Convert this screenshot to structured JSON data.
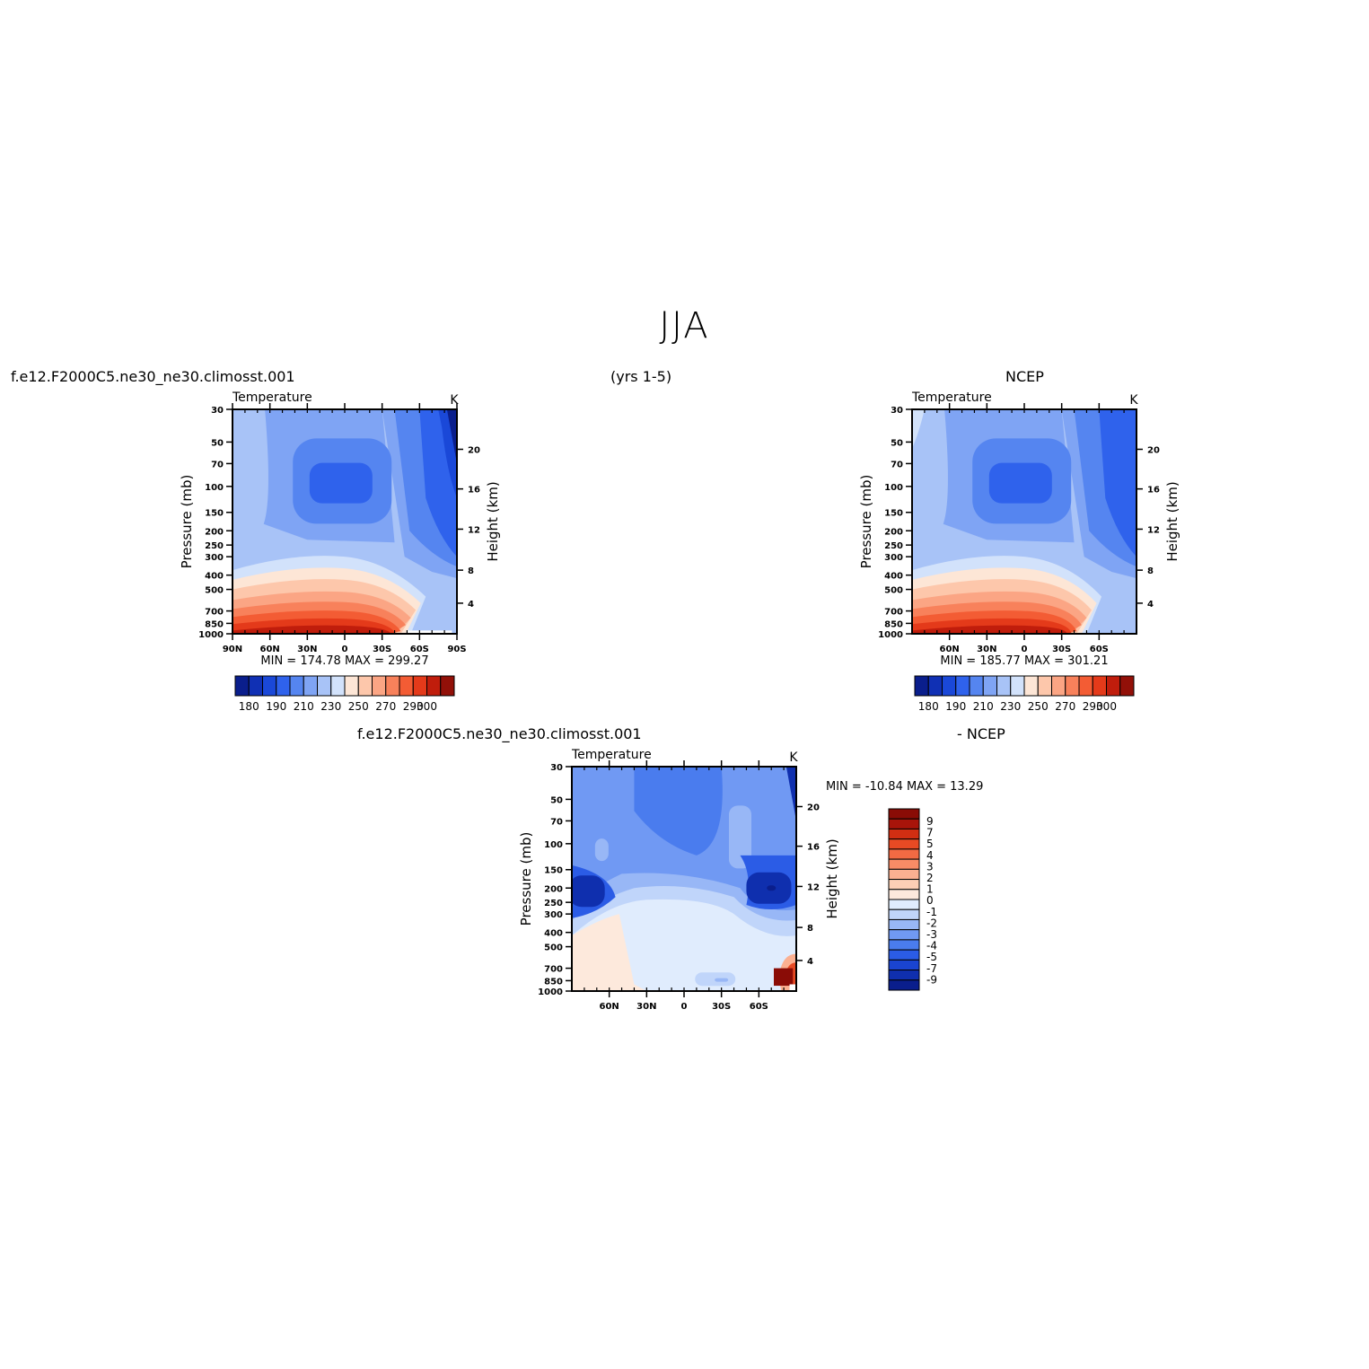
{
  "page": {
    "title": "JJA",
    "top_left_label": "f.e12.F2000C5.ne30_ne30.climosst.001",
    "top_center_label": "(yrs 1-5)",
    "top_right_label": "NCEP",
    "diff_left_label": "f.e12.F2000C5.ne30_ne30.climosst.001",
    "diff_right_label": "- NCEP"
  },
  "colors": {
    "temperature_scale": [
      "#0a1e8c",
      "#1030b4",
      "#1a48d8",
      "#2f62ec",
      "#5585f0",
      "#7fa4f4",
      "#a8c3f7",
      "#d2e2fb",
      "#fde6d6",
      "#fdc7ab",
      "#fba584",
      "#f8815b",
      "#f35c34",
      "#e43a1a",
      "#c01d0c",
      "#921008"
    ],
    "difference_scale": [
      "#0a1e8c",
      "#0f2fae",
      "#1a44d0",
      "#2b5ce6",
      "#4a7cee",
      "#7099f3",
      "#98b7f6",
      "#c0d5fa",
      "#e0ecfd",
      "#fde9dc",
      "#fccfb5",
      "#fbb091",
      "#f88c66",
      "#f26a43",
      "#e74a24",
      "#d12e12",
      "#a8140a",
      "#8a0c06"
    ]
  },
  "chart_data": [
    {
      "type": "heatmap",
      "title": "Temperature",
      "units": "K",
      "xlabel": "",
      "ylabel": "Pressure (mb)",
      "right_axis_label": "Height (km)",
      "x_ticks": [
        "90N",
        "60N",
        "30N",
        "0",
        "30S",
        "60S",
        "90S"
      ],
      "y_ticks": [
        "30",
        "50",
        "70",
        "100",
        "150",
        "200",
        "250",
        "300",
        "400",
        "500",
        "700",
        "850",
        "1000"
      ],
      "right_ticks": [
        "4",
        "8",
        "12",
        "16",
        "20"
      ],
      "ylim": [
        1000,
        30
      ],
      "stats": "MIN = 174.78   MAX = 299.27",
      "colorbar_labels": [
        "180",
        "190",
        "210",
        "230",
        "250",
        "270",
        "290",
        "300"
      ],
      "levels": [
        180,
        190,
        200,
        210,
        220,
        230,
        240,
        250,
        260,
        270,
        280,
        290,
        300
      ]
    },
    {
      "type": "heatmap",
      "title": "Temperature",
      "units": "K",
      "xlabel": "",
      "ylabel": "Pressure (mb)",
      "right_axis_label": "Height (km)",
      "x_ticks": [
        "60N",
        "30N",
        "0",
        "30S",
        "60S"
      ],
      "y_ticks": [
        "30",
        "50",
        "70",
        "100",
        "150",
        "200",
        "250",
        "300",
        "400",
        "500",
        "700",
        "850",
        "1000"
      ],
      "right_ticks": [
        "4",
        "8",
        "12",
        "16",
        "20"
      ],
      "ylim": [
        1000,
        30
      ],
      "stats": "MIN = 185.77   MAX = 301.21",
      "colorbar_labels": [
        "180",
        "190",
        "210",
        "230",
        "250",
        "270",
        "290",
        "300"
      ],
      "levels": [
        180,
        190,
        200,
        210,
        220,
        230,
        240,
        250,
        260,
        270,
        280,
        290,
        300
      ]
    },
    {
      "type": "heatmap",
      "title": "Temperature",
      "units": "K",
      "xlabel": "",
      "ylabel": "Pressure (mb)",
      "right_axis_label": "Height (km)",
      "x_ticks": [
        "60N",
        "30N",
        "0",
        "30S",
        "60S"
      ],
      "y_ticks": [
        "30",
        "50",
        "70",
        "100",
        "150",
        "200",
        "250",
        "300",
        "400",
        "500",
        "700",
        "850",
        "1000"
      ],
      "right_ticks": [
        "4",
        "8",
        "12",
        "16",
        "20"
      ],
      "ylim": [
        1000,
        30
      ],
      "stats": "MIN = -10.84   MAX =   13.29",
      "colorbar_labels": [
        "9",
        "7",
        "5",
        "4",
        "3",
        "2",
        "1",
        "0",
        "-1",
        "-2",
        "-3",
        "-4",
        "-5",
        "-7",
        "-9"
      ]
    }
  ]
}
